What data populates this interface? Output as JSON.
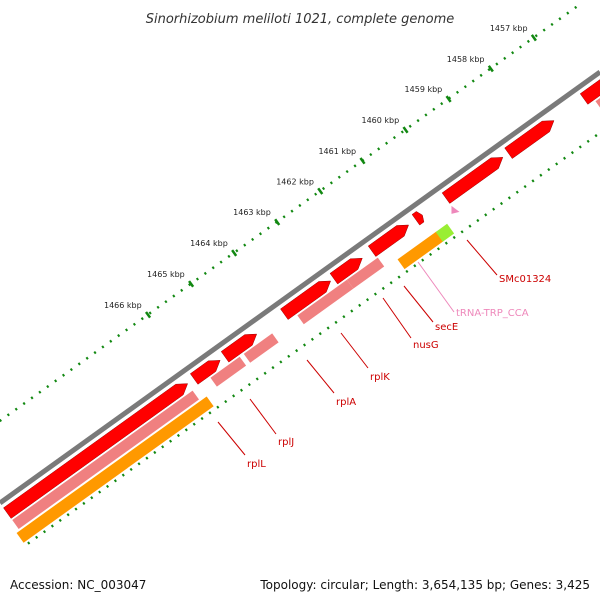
{
  "title": "Sinorhizobium meliloti 1021, complete genome",
  "footer": {
    "accession": "Accession: NC_003047",
    "stats": "Topology: circular; Length: 3,654,135 bp; Genes: 3,425"
  },
  "ticks": [
    "1457 kbp",
    "1458 kbp",
    "1459 kbp",
    "1460 kbp",
    "1461 kbp",
    "1462 kbp",
    "1463 kbp",
    "1464 kbp",
    "1465 kbp",
    "1466 kbp"
  ],
  "genes": [
    {
      "label": "SMc01324",
      "color": "#cc0000"
    },
    {
      "label": "tRNA-TRP_CCA",
      "color": "#ee88bb"
    },
    {
      "label": "secE",
      "color": "#cc0000"
    },
    {
      "label": "nusG",
      "color": "#cc0000"
    },
    {
      "label": "rplK",
      "color": "#cc0000"
    },
    {
      "label": "rplA",
      "color": "#cc0000"
    },
    {
      "label": "rplJ",
      "color": "#cc0000"
    },
    {
      "label": "rplL",
      "color": "#cc0000"
    }
  ],
  "colors": {
    "backbone": "#7a7a7a",
    "cds": "#ff0000",
    "cds_light": "#f08080",
    "rna": "#ff9900",
    "trna": "#99ee33",
    "tick": "#118811"
  }
}
